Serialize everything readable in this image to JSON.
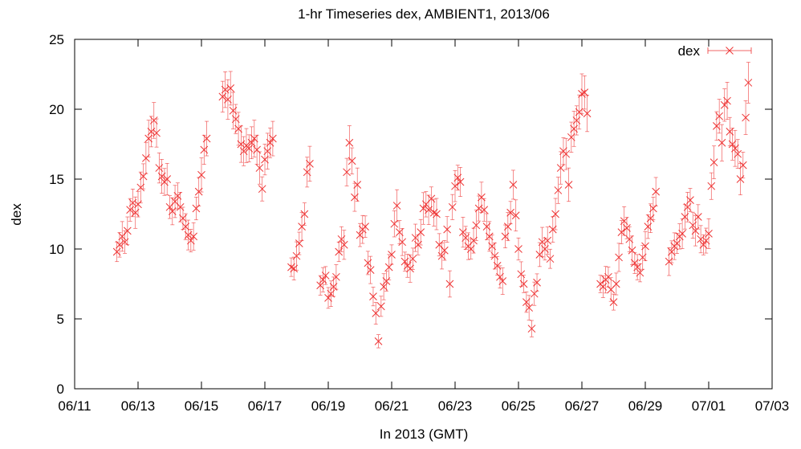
{
  "chart_data": {
    "type": "scatter",
    "title": "1-hr Timeseries dex, AMBIENT1, 2013/06",
    "xlabel": "In 2013 (GMT)",
    "ylabel": "dex",
    "ylim": [
      0,
      25
    ],
    "yticks": [
      "0",
      "5",
      "10",
      "15",
      "20",
      "25"
    ],
    "xlim_days": [
      "06/11",
      "07/03"
    ],
    "xticks": [
      "06/11",
      "06/13",
      "06/15",
      "06/17",
      "06/19",
      "06/21",
      "06/23",
      "06/25",
      "06/27",
      "06/29",
      "07/01",
      "07/03"
    ],
    "grid": false,
    "legend_position": "top-right",
    "marker": "x",
    "error_bars": true,
    "color": "#ee3333",
    "series": [
      {
        "name": "dex",
        "points": [
          [
            "06/12 08:00",
            9.8
          ],
          [
            "06/12 10:00",
            10.3
          ],
          [
            "06/12 12:00",
            10.9
          ],
          [
            "06/12 14:00",
            10.5
          ],
          [
            "06/12 16:00",
            11.3
          ],
          [
            "06/12 18:00",
            12.8
          ],
          [
            "06/12 20:00",
            13.3
          ],
          [
            "06/12 22:00",
            12.6
          ],
          [
            "06/13 00:00",
            13.2
          ],
          [
            "06/13 02:00",
            14.4
          ],
          [
            "06/13 04:00",
            15.2
          ],
          [
            "06/13 06:00",
            16.5
          ],
          [
            "06/13 08:00",
            17.9
          ],
          [
            "06/13 10:00",
            18.4
          ],
          [
            "06/13 12:00",
            19.2
          ],
          [
            "06/13 14:00",
            18.3
          ],
          [
            "06/13 16:00",
            15.8
          ],
          [
            "06/13 18:00",
            15.2
          ],
          [
            "06/13 20:00",
            14.8
          ],
          [
            "06/13 22:00",
            15.0
          ],
          [
            "06/14 00:00",
            13.0
          ],
          [
            "06/14 02:00",
            12.7
          ],
          [
            "06/14 04:00",
            13.4
          ],
          [
            "06/14 06:00",
            13.8
          ],
          [
            "06/14 08:00",
            13.0
          ],
          [
            "06/14 10:00",
            12.2
          ],
          [
            "06/14 12:00",
            11.6
          ],
          [
            "06/14 14:00",
            11.0
          ],
          [
            "06/14 16:00",
            10.6
          ],
          [
            "06/14 18:00",
            10.9
          ],
          [
            "06/14 20:00",
            12.9
          ],
          [
            "06/14 22:00",
            14.1
          ],
          [
            "06/15 00:00",
            15.3
          ],
          [
            "06/15 02:00",
            17.1
          ],
          [
            "06/15 04:00",
            17.9
          ],
          [
            "06/15 16:00",
            20.9
          ],
          [
            "06/15 18:00",
            21.4
          ],
          [
            "06/15 20:00",
            20.7
          ],
          [
            "06/15 22:00",
            21.5
          ],
          [
            "06/16 00:00",
            19.9
          ],
          [
            "06/16 02:00",
            19.3
          ],
          [
            "06/16 04:00",
            18.6
          ],
          [
            "06/16 06:00",
            17.5
          ],
          [
            "06/16 08:00",
            17.0
          ],
          [
            "06/16 10:00",
            17.4
          ],
          [
            "06/16 12:00",
            17.2
          ],
          [
            "06/16 14:00",
            17.6
          ],
          [
            "06/16 16:00",
            17.9
          ],
          [
            "06/16 18:00",
            17.1
          ],
          [
            "06/16 20:00",
            15.8
          ],
          [
            "06/16 22:00",
            14.3
          ],
          [
            "06/17 00:00",
            16.4
          ],
          [
            "06/17 02:00",
            17.0
          ],
          [
            "06/17 04:00",
            17.6
          ],
          [
            "06/17 06:00",
            17.9
          ],
          [
            "06/17 20:00",
            8.7
          ],
          [
            "06/17 22:00",
            8.6
          ],
          [
            "06/18 00:00",
            9.5
          ],
          [
            "06/18 02:00",
            10.4
          ],
          [
            "06/18 04:00",
            11.6
          ],
          [
            "06/18 06:00",
            12.5
          ],
          [
            "06/18 08:00",
            15.5
          ],
          [
            "06/18 10:00",
            16.1
          ],
          [
            "06/18 18:00",
            7.4
          ],
          [
            "06/18 20:00",
            7.8
          ],
          [
            "06/18 22:00",
            8.1
          ],
          [
            "06/19 00:00",
            6.5
          ],
          [
            "06/19 02:00",
            6.8
          ],
          [
            "06/19 04:00",
            7.3
          ],
          [
            "06/19 06:00",
            8.0
          ],
          [
            "06/19 08:00",
            9.8
          ],
          [
            "06/19 10:00",
            10.7
          ],
          [
            "06/19 12:00",
            10.3
          ],
          [
            "06/19 14:00",
            15.5
          ],
          [
            "06/19 16:00",
            17.6
          ],
          [
            "06/19 18:00",
            16.3
          ],
          [
            "06/19 20:00",
            13.7
          ],
          [
            "06/19 22:00",
            14.6
          ],
          [
            "06/20 00:00",
            11.0
          ],
          [
            "06/20 02:00",
            11.4
          ],
          [
            "06/20 04:00",
            11.6
          ],
          [
            "06/20 06:00",
            9.0
          ],
          [
            "06/20 08:00",
            8.5
          ],
          [
            "06/20 10:00",
            6.6
          ],
          [
            "06/20 12:00",
            5.4
          ],
          [
            "06/20 14:00",
            3.4
          ],
          [
            "06/20 16:00",
            5.9
          ],
          [
            "06/20 18:00",
            7.3
          ],
          [
            "06/20 20:00",
            7.7
          ],
          [
            "06/20 22:00",
            8.7
          ],
          [
            "06/21 00:00",
            9.6
          ],
          [
            "06/21 02:00",
            11.8
          ],
          [
            "06/21 04:00",
            13.1
          ],
          [
            "06/21 06:00",
            11.2
          ],
          [
            "06/21 08:00",
            10.5
          ],
          [
            "06/21 10:00",
            9.1
          ],
          [
            "06/21 12:00",
            8.8
          ],
          [
            "06/21 14:00",
            8.6
          ],
          [
            "06/21 16:00",
            9.3
          ],
          [
            "06/21 18:00",
            10.8
          ],
          [
            "06/21 20:00",
            10.3
          ],
          [
            "06/21 22:00",
            11.2
          ],
          [
            "06/22 00:00",
            12.9
          ],
          [
            "06/22 02:00",
            13.2
          ],
          [
            "06/22 04:00",
            12.8
          ],
          [
            "06/22 06:00",
            13.6
          ],
          [
            "06/22 08:00",
            12.6
          ],
          [
            "06/22 10:00",
            12.5
          ],
          [
            "06/22 12:00",
            10.3
          ],
          [
            "06/22 14:00",
            9.5
          ],
          [
            "06/22 16:00",
            9.9
          ],
          [
            "06/22 18:00",
            11.4
          ],
          [
            "06/22 20:00",
            7.5
          ],
          [
            "06/22 22:00",
            13.0
          ],
          [
            "06/23 00:00",
            14.5
          ],
          [
            "06/23 02:00",
            15.1
          ],
          [
            "06/23 04:00",
            14.8
          ],
          [
            "06/23 06:00",
            11.2
          ],
          [
            "06/23 08:00",
            10.8
          ],
          [
            "06/23 10:00",
            10.2
          ],
          [
            "06/23 12:00",
            10.0
          ],
          [
            "06/23 14:00",
            10.6
          ],
          [
            "06/23 16:00",
            11.7
          ],
          [
            "06/23 18:00",
            12.9
          ],
          [
            "06/23 20:00",
            13.7
          ],
          [
            "06/23 22:00",
            12.8
          ],
          [
            "06/24 00:00",
            11.6
          ],
          [
            "06/24 02:00",
            10.9
          ],
          [
            "06/24 04:00",
            10.2
          ],
          [
            "06/24 06:00",
            9.5
          ],
          [
            "06/24 08:00",
            8.8
          ],
          [
            "06/24 10:00",
            8.0
          ],
          [
            "06/24 12:00",
            7.7
          ],
          [
            "06/24 14:00",
            10.9
          ],
          [
            "06/24 16:00",
            11.6
          ],
          [
            "06/24 18:00",
            12.6
          ],
          [
            "06/24 20:00",
            14.6
          ],
          [
            "06/24 22:00",
            12.4
          ],
          [
            "06/25 00:00",
            10.0
          ],
          [
            "06/25 02:00",
            8.2
          ],
          [
            "06/25 04:00",
            7.5
          ],
          [
            "06/25 06:00",
            6.2
          ],
          [
            "06/25 08:00",
            5.8
          ],
          [
            "06/25 10:00",
            4.3
          ],
          [
            "06/25 12:00",
            6.8
          ],
          [
            "06/25 14:00",
            7.6
          ],
          [
            "06/25 16:00",
            9.6
          ],
          [
            "06/25 18:00",
            10.5
          ],
          [
            "06/25 20:00",
            10.0
          ],
          [
            "06/25 22:00",
            10.6
          ],
          [
            "06/26 00:00",
            9.3
          ],
          [
            "06/26 02:00",
            11.4
          ],
          [
            "06/26 04:00",
            12.5
          ],
          [
            "06/26 06:00",
            14.2
          ],
          [
            "06/26 08:00",
            15.8
          ],
          [
            "06/26 10:00",
            17.0
          ],
          [
            "06/26 12:00",
            16.8
          ],
          [
            "06/26 14:00",
            14.6
          ],
          [
            "06/26 16:00",
            18.0
          ],
          [
            "06/26 18:00",
            18.6
          ],
          [
            "06/26 20:00",
            19.2
          ],
          [
            "06/26 22:00",
            19.8
          ],
          [
            "06/27 00:00",
            21.1
          ],
          [
            "06/27 02:00",
            21.2
          ],
          [
            "06/27 04:00",
            19.7
          ],
          [
            "06/27 14:00",
            7.5
          ],
          [
            "06/27 16:00",
            7.3
          ],
          [
            "06/27 18:00",
            7.8
          ],
          [
            "06/27 20:00",
            8.0
          ],
          [
            "06/27 22:00",
            7.1
          ],
          [
            "06/28 00:00",
            6.2
          ],
          [
            "06/28 02:00",
            7.5
          ],
          [
            "06/28 04:00",
            9.4
          ],
          [
            "06/28 06:00",
            11.2
          ],
          [
            "06/28 08:00",
            12.0
          ],
          [
            "06/28 10:00",
            11.5
          ],
          [
            "06/28 12:00",
            10.7
          ],
          [
            "06/28 14:00",
            9.9
          ],
          [
            "06/28 16:00",
            9.0
          ],
          [
            "06/28 18:00",
            8.7
          ],
          [
            "06/28 20:00",
            8.3
          ],
          [
            "06/28 22:00",
            9.4
          ],
          [
            "06/29 00:00",
            10.2
          ],
          [
            "06/29 02:00",
            11.6
          ],
          [
            "06/29 04:00",
            12.2
          ],
          [
            "06/29 06:00",
            12.9
          ],
          [
            "06/29 08:00",
            14.1
          ],
          [
            "06/29 18:00",
            9.1
          ],
          [
            "06/29 20:00",
            9.8
          ],
          [
            "06/29 22:00",
            10.2
          ],
          [
            "06/30 00:00",
            10.4
          ],
          [
            "06/30 02:00",
            10.9
          ],
          [
            "06/30 04:00",
            11.1
          ],
          [
            "06/30 06:00",
            12.3
          ],
          [
            "06/30 08:00",
            13.0
          ],
          [
            "06/30 10:00",
            13.5
          ],
          [
            "06/30 12:00",
            11.7
          ],
          [
            "06/30 14:00",
            11.3
          ],
          [
            "06/30 16:00",
            12.3
          ],
          [
            "06/30 18:00",
            10.7
          ],
          [
            "06/30 20:00",
            10.3
          ],
          [
            "06/30 22:00",
            10.6
          ],
          [
            "07/01 00:00",
            11.1
          ],
          [
            "07/01 02:00",
            14.5
          ],
          [
            "07/01 04:00",
            16.2
          ],
          [
            "07/01 06:00",
            18.8
          ],
          [
            "07/01 08:00",
            19.5
          ],
          [
            "07/01 10:00",
            17.6
          ],
          [
            "07/01 12:00",
            20.3
          ],
          [
            "07/01 14:00",
            20.6
          ],
          [
            "07/01 16:00",
            18.4
          ],
          [
            "07/01 18:00",
            17.5
          ],
          [
            "07/01 20:00",
            17.2
          ],
          [
            "07/01 22:00",
            16.8
          ],
          [
            "07/02 00:00",
            15.0
          ],
          [
            "07/02 02:00",
            16.0
          ],
          [
            "07/02 04:00",
            19.4
          ],
          [
            "07/02 06:00",
            21.9
          ]
        ]
      }
    ]
  }
}
